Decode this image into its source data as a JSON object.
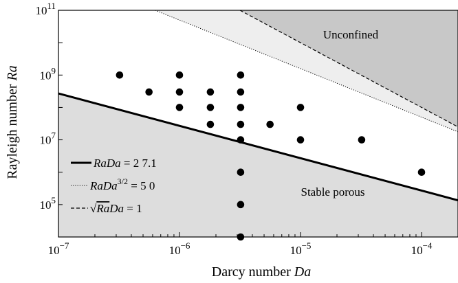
{
  "chart_data": {
    "type": "scatter",
    "xscale": "log",
    "yscale": "log",
    "xlim": [
      1e-07,
      0.0002
    ],
    "ylim": [
      10000,
      100000000000.0
    ],
    "xlabel": "Darcy number Da",
    "xlabel_text": "Darcy number ",
    "xlabel_symbol": "Da",
    "ylabel": "Rayleigh number Ra",
    "ylabel_text": "Rayleigh number ",
    "ylabel_symbol": "Ra",
    "xticks": [
      {
        "value": 1e-07,
        "base": "10",
        "exp": "−7"
      },
      {
        "value": 1e-06,
        "base": "10",
        "exp": "−6"
      },
      {
        "value": 1e-05,
        "base": "10",
        "exp": "−5"
      },
      {
        "value": 0.0001,
        "base": "10",
        "exp": "−4"
      }
    ],
    "yticks": [
      {
        "value": 100000,
        "base": "10",
        "exp": "5"
      },
      {
        "value": 10000000,
        "base": "10",
        "exp": "7"
      },
      {
        "value": 1000000000,
        "base": "10",
        "exp": "9"
      },
      {
        "value": 100000000000,
        "base": "10",
        "exp": "11"
      }
    ],
    "regions": [
      {
        "name": "Unconfined",
        "label": "Unconfined",
        "fill": "#c8c8c8",
        "boundary": "sqrt(Ra)Da = 1"
      },
      {
        "name": "intermediate",
        "label": "",
        "fill": "#eeeeee",
        "boundary": "RaDa^3/2 = 5 0"
      },
      {
        "name": "Stable porous",
        "label": "Stable porous",
        "fill": "#dddddd",
        "boundary": "RaDa = 2 7.1"
      }
    ],
    "lines": [
      {
        "name": "RaDa = 2 7.1",
        "style": "solid",
        "relation": "Ra*Da = 27.1",
        "kind": "rada",
        "c": 27.1
      },
      {
        "name": "RaDa^3/2 = 5 0",
        "style": "dotted",
        "relation": "Ra*Da^1.5 = 50",
        "kind": "rada32",
        "c": 50
      },
      {
        "name": "sqrt(Ra)Da = 1",
        "style": "dashed",
        "relation": "sqrt(Ra)*Da = 1",
        "kind": "sqrtrada",
        "c": 1
      }
    ],
    "legend": {
      "placement": "bottom-left",
      "entries": [
        {
          "style": "solid",
          "pre": "",
          "sym1": "RaDa",
          "sup": "",
          "post": " = 2 7.1"
        },
        {
          "style": "dotted",
          "pre": "",
          "sym1": "RaDa",
          "sup": "3/2",
          "post": " = 5 0"
        },
        {
          "style": "dashed",
          "pre": "√",
          "sym1": "Ra",
          "sym2": "Da",
          "sup": "",
          "post": " = 1"
        }
      ]
    },
    "points": [
      {
        "x": 3.2e-07,
        "y": 1000000000.0
      },
      {
        "x": 5.6e-07,
        "y": 300000000.0
      },
      {
        "x": 1e-06,
        "y": 1000000000.0
      },
      {
        "x": 1e-06,
        "y": 300000000.0
      },
      {
        "x": 1e-06,
        "y": 100000000.0
      },
      {
        "x": 1.8e-06,
        "y": 300000000.0
      },
      {
        "x": 1.8e-06,
        "y": 100000000.0
      },
      {
        "x": 1.8e-06,
        "y": 30000000.0
      },
      {
        "x": 3.2e-06,
        "y": 1000000000.0
      },
      {
        "x": 3.2e-06,
        "y": 300000000.0
      },
      {
        "x": 3.2e-06,
        "y": 100000000.0
      },
      {
        "x": 3.2e-06,
        "y": 30000000.0
      },
      {
        "x": 3.2e-06,
        "y": 10000000.0
      },
      {
        "x": 3.2e-06,
        "y": 1000000.0
      },
      {
        "x": 3.2e-06,
        "y": 100000.0
      },
      {
        "x": 3.2e-06,
        "y": 10000.0
      },
      {
        "x": 5.6e-06,
        "y": 30000000.0
      },
      {
        "x": 1e-05,
        "y": 100000000.0
      },
      {
        "x": 1e-05,
        "y": 10000000.0
      },
      {
        "x": 3.2e-05,
        "y": 10000000.0
      },
      {
        "x": 0.0001,
        "y": 1000000.0
      }
    ]
  }
}
